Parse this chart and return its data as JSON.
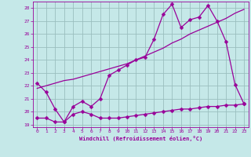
{
  "xlabel": "Windchill (Refroidissement éolien,°C)",
  "xlim": [
    -0.5,
    23.5
  ],
  "ylim": [
    18.8,
    28.5
  ],
  "yticks": [
    19,
    20,
    21,
    22,
    23,
    24,
    25,
    26,
    27,
    28
  ],
  "xticks": [
    0,
    1,
    2,
    3,
    4,
    5,
    6,
    7,
    8,
    9,
    10,
    11,
    12,
    13,
    14,
    15,
    16,
    17,
    18,
    19,
    20,
    21,
    22,
    23
  ],
  "background_color": "#c5e8e8",
  "grid_color": "#9bbfbf",
  "line_color": "#990099",
  "line1_x": [
    0,
    1,
    2,
    3,
    4,
    5,
    6,
    7,
    8,
    9,
    10,
    11,
    12,
    13,
    14,
    15,
    16,
    17,
    18,
    19,
    20,
    21,
    22,
    23
  ],
  "line1_y": [
    22.2,
    21.5,
    20.2,
    19.2,
    20.4,
    20.8,
    20.4,
    21.0,
    22.8,
    23.2,
    23.6,
    24.0,
    24.2,
    25.6,
    27.5,
    28.3,
    26.5,
    27.1,
    27.3,
    28.2,
    27.0,
    25.4,
    22.1,
    20.6
  ],
  "line2_x": [
    0,
    1,
    2,
    3,
    4,
    5,
    6,
    7,
    8,
    9,
    10,
    11,
    12,
    13,
    14,
    15,
    16,
    17,
    18,
    19,
    20,
    21,
    22,
    23
  ],
  "line2_y": [
    21.8,
    22.0,
    22.2,
    22.4,
    22.5,
    22.7,
    22.9,
    23.1,
    23.3,
    23.5,
    23.7,
    24.0,
    24.3,
    24.6,
    24.9,
    25.3,
    25.6,
    26.0,
    26.3,
    26.6,
    26.9,
    27.2,
    27.6,
    27.9
  ],
  "line3_x": [
    0,
    1,
    2,
    3,
    4,
    5,
    6,
    7,
    8,
    9,
    10,
    11,
    12,
    13,
    14,
    15,
    16,
    17,
    18,
    19,
    20,
    21,
    22,
    23
  ],
  "line3_y": [
    19.5,
    19.5,
    19.2,
    19.2,
    19.8,
    20.0,
    19.8,
    19.5,
    19.5,
    19.5,
    19.6,
    19.7,
    19.8,
    19.9,
    20.0,
    20.1,
    20.2,
    20.2,
    20.3,
    20.4,
    20.4,
    20.5,
    20.5,
    20.6
  ]
}
